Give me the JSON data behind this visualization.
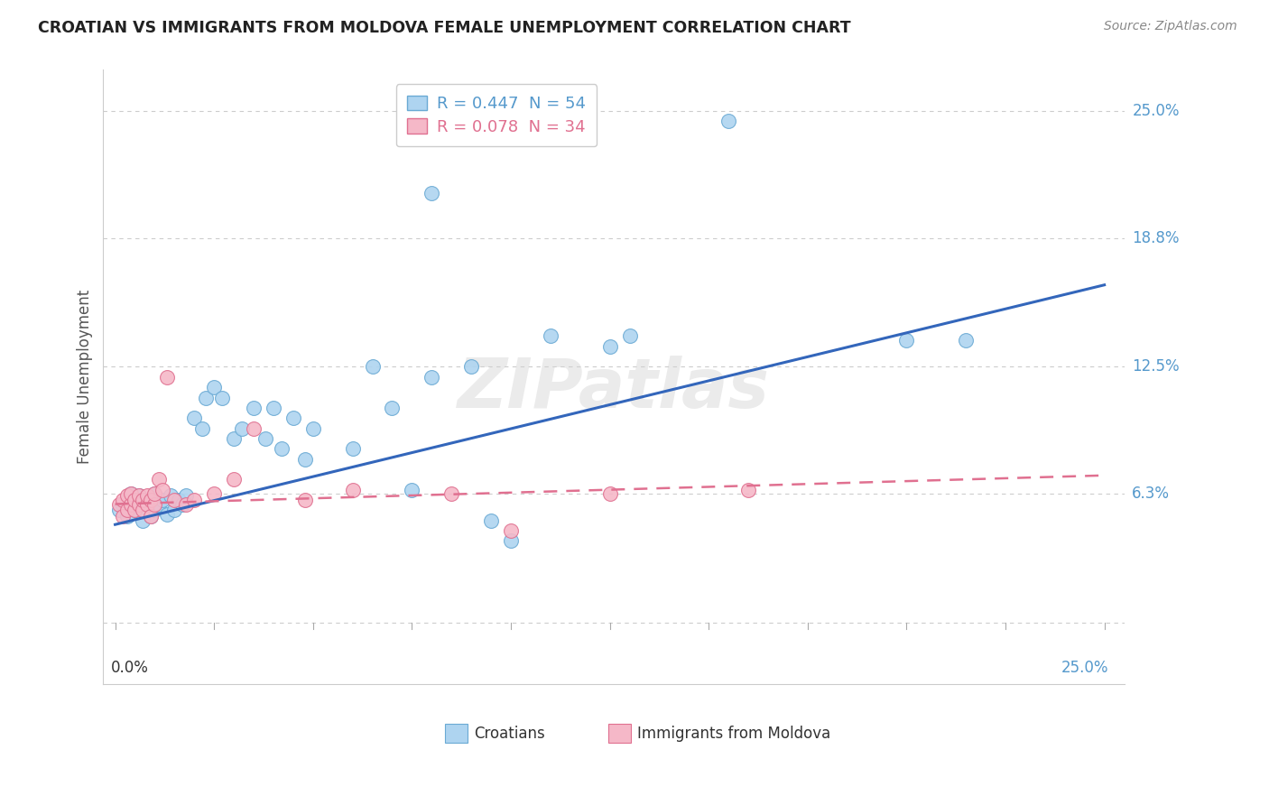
{
  "title": "CROATIAN VS IMMIGRANTS FROM MOLDOVA FEMALE UNEMPLOYMENT CORRELATION CHART",
  "source": "Source: ZipAtlas.com",
  "ylabel": "Female Unemployment",
  "ytick_values": [
    0.0,
    0.063,
    0.125,
    0.188,
    0.25
  ],
  "ytick_labels": [
    "",
    "6.3%",
    "12.5%",
    "18.8%",
    "25.0%"
  ],
  "xlim": [
    0.0,
    0.25
  ],
  "ylim": [
    -0.03,
    0.27
  ],
  "legend_r1_text": "R = 0.447  N = 54",
  "legend_r2_text": "R = 0.078  N = 34",
  "watermark": "ZIPatlas",
  "croatian_color": "#AED4F0",
  "croatian_edge_color": "#6AAAD4",
  "moldova_color": "#F5B8C8",
  "moldova_edge_color": "#E07090",
  "croatian_line_color": "#3366BB",
  "moldova_line_color": "#E07090",
  "legend_cr_color": "#AED4F0",
  "legend_md_color": "#F5B8C8",
  "right_axis_color": "#5599CC",
  "background_color": "#FFFFFF",
  "grid_color": "#CCCCCC",
  "cr_x": [
    0.001,
    0.002,
    0.003,
    0.003,
    0.004,
    0.004,
    0.005,
    0.005,
    0.006,
    0.006,
    0.007,
    0.007,
    0.008,
    0.008,
    0.009,
    0.01,
    0.01,
    0.011,
    0.012,
    0.013,
    0.014,
    0.015,
    0.016,
    0.017,
    0.018,
    0.02,
    0.022,
    0.023,
    0.025,
    0.027,
    0.03,
    0.032,
    0.035,
    0.038,
    0.04,
    0.042,
    0.045,
    0.048,
    0.05,
    0.06,
    0.065,
    0.07,
    0.075,
    0.08,
    0.09,
    0.095,
    0.1,
    0.11,
    0.125,
    0.13,
    0.155,
    0.08,
    0.2,
    0.215
  ],
  "cr_y": [
    0.055,
    0.058,
    0.052,
    0.06,
    0.057,
    0.063,
    0.055,
    0.06,
    0.058,
    0.062,
    0.05,
    0.055,
    0.058,
    0.06,
    0.052,
    0.055,
    0.063,
    0.058,
    0.06,
    0.053,
    0.062,
    0.055,
    0.06,
    0.058,
    0.062,
    0.1,
    0.095,
    0.11,
    0.115,
    0.11,
    0.09,
    0.095,
    0.105,
    0.09,
    0.105,
    0.085,
    0.1,
    0.08,
    0.095,
    0.085,
    0.125,
    0.105,
    0.065,
    0.12,
    0.125,
    0.05,
    0.04,
    0.14,
    0.135,
    0.14,
    0.245,
    0.21,
    0.138,
    0.138
  ],
  "md_x": [
    0.001,
    0.002,
    0.002,
    0.003,
    0.003,
    0.004,
    0.004,
    0.005,
    0.005,
    0.006,
    0.006,
    0.007,
    0.007,
    0.008,
    0.008,
    0.009,
    0.009,
    0.01,
    0.01,
    0.011,
    0.012,
    0.013,
    0.015,
    0.018,
    0.02,
    0.025,
    0.03,
    0.035,
    0.048,
    0.06,
    0.085,
    0.1,
    0.125,
    0.16
  ],
  "md_y": [
    0.058,
    0.052,
    0.06,
    0.055,
    0.062,
    0.058,
    0.063,
    0.055,
    0.06,
    0.058,
    0.062,
    0.055,
    0.06,
    0.058,
    0.062,
    0.052,
    0.06,
    0.058,
    0.063,
    0.07,
    0.065,
    0.12,
    0.06,
    0.058,
    0.06,
    0.063,
    0.07,
    0.095,
    0.06,
    0.065,
    0.063,
    0.045,
    0.063,
    0.065
  ],
  "cr_line_x": [
    0.0,
    0.25
  ],
  "cr_line_y": [
    0.048,
    0.165
  ],
  "md_line_x": [
    0.0,
    0.25
  ],
  "md_line_y": [
    0.058,
    0.072
  ]
}
